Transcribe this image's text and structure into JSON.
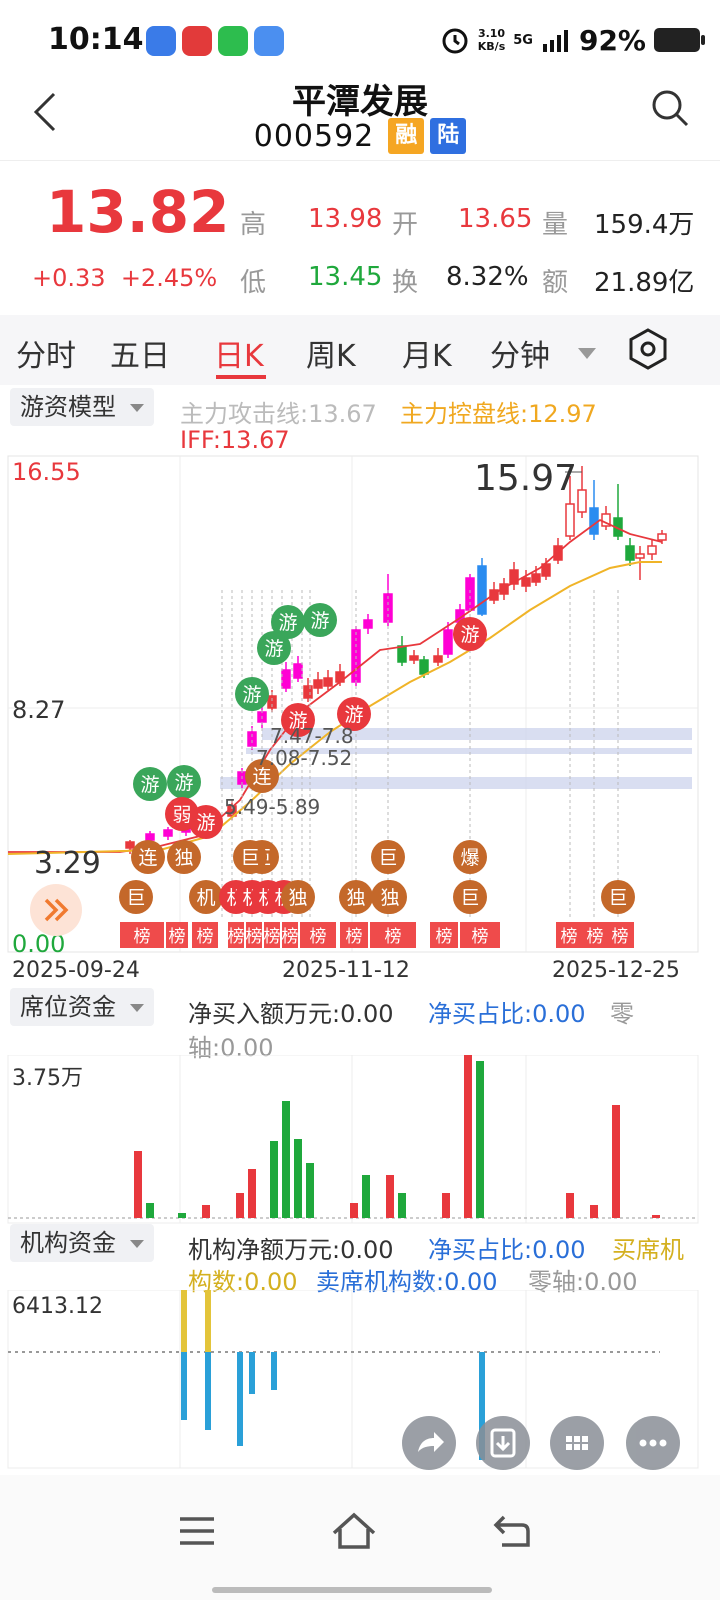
{
  "status_bar": {
    "time": "10:14",
    "net_speed_value": "3.10",
    "net_speed_unit": "KB/s",
    "network": "5G",
    "battery": "92%"
  },
  "header": {
    "title": "平潭发展",
    "code": "000592",
    "tag_margin": "融",
    "tag_hk": "陆"
  },
  "quote": {
    "price": "13.82",
    "change": "+0.33",
    "change_pct": "+2.45%",
    "high_label": "高",
    "high": "13.98",
    "open_label": "开",
    "open": "13.65",
    "volume_label": "量",
    "volume": "159.4万",
    "low_label": "低",
    "low": "13.45",
    "turnover_label": "换",
    "turnover": "8.32%",
    "amount_label": "额",
    "amount": "21.89亿"
  },
  "tabs": [
    "分时",
    "五日",
    "日K",
    "周K",
    "月K",
    "分钟"
  ],
  "active_tab": "日K",
  "main_chart": {
    "model_label": "游资模型",
    "attack_line": "主力攻击线:13.67",
    "control_line": "主力控盘线:12.97",
    "iff": "IFF:13.67",
    "y_top": "16.55",
    "y_mid": "8.27",
    "y_low_price": "3.29",
    "y_bottom": "0.00",
    "peak_label": "15.97",
    "zone_1": "7.47-7.8",
    "zone_2": "7.08-7.52",
    "zone_3": "5.49-5.89",
    "x_labels": [
      "2025-09-24",
      "2025-11-12",
      "2025-12-25"
    ]
  },
  "seat_funds": {
    "label": "席位资金",
    "net_buy_label": "净买入额万元:0.00",
    "ratio_label": "净买占比:0.00",
    "zero_label": "零",
    "zero_label_2": "轴:0.00",
    "y_top": "3.75万"
  },
  "inst_funds": {
    "label": "机构资金",
    "net_label": "机构净额万元:0.00",
    "ratio_label": "净买占比:0.00",
    "buy_count_label": "买席机",
    "buy_count_label_2": "构数:0.00",
    "sell_count_label": "卖席机构数:0.00",
    "zero_label": "零轴:0.00",
    "y_top": "6413.12"
  },
  "tag_texts": {
    "you": "游",
    "ruo": "弱",
    "lian": "连",
    "du": "独",
    "ju": "巨",
    "ji": "机",
    "bao": "爆",
    "bang": "榜"
  },
  "colors": {
    "up": "#e8383d",
    "down": "#1fa83c",
    "ma_yellow": "#f0b428",
    "tag_orange": "#c4682a",
    "badge_green": "#3aa65a",
    "blue_bar": "#2aa0d8",
    "yellow_bar": "#e3c43a"
  }
}
